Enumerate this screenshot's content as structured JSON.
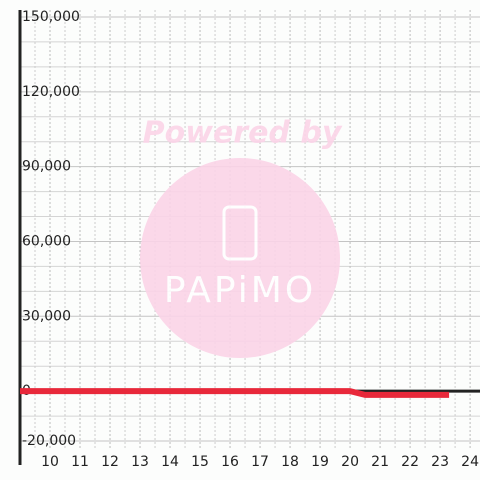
{
  "chart_data": {
    "type": "line",
    "watermark_text": "Powered by",
    "watermark_logo": "PAPiMO",
    "x": [
      9,
      10,
      11,
      12,
      13,
      14,
      15,
      16,
      17,
      18,
      19,
      20,
      20.5,
      21,
      22,
      23,
      23.3
    ],
    "series": [
      {
        "color": "#e8283a",
        "values": [
          0,
          0,
          0,
          0,
          0,
          0,
          0,
          0,
          0,
          0,
          0,
          0,
          -1500,
          -1500,
          -1500,
          -1500,
          -1500
        ]
      }
    ],
    "xlim": [
      9,
      24.33
    ],
    "ylim": [
      -23600,
      152800
    ],
    "xticks": [
      10,
      11,
      12,
      13,
      14,
      15,
      16,
      17,
      18,
      19,
      20,
      21,
      22,
      23,
      24
    ],
    "x_minor_ticks": [
      9.5,
      10.5,
      11.5,
      12.5,
      13.5,
      14.5,
      15.5,
      16.5,
      17.5,
      18.5,
      19.5,
      20.5,
      21.5,
      22.5,
      23.5
    ],
    "yticks": [
      {
        "value": -20000,
        "label": "-20,000"
      },
      0,
      {
        "value": 30000,
        "label": "30,000"
      },
      {
        "value": 60000,
        "label": "60,000"
      },
      {
        "value": 90000,
        "label": "90,000"
      },
      {
        "value": 120000,
        "label": "120,000"
      },
      {
        "value": 150000,
        "label": "150,000"
      }
    ],
    "y_minor_ticks": [
      -10000,
      10000,
      20000,
      40000,
      50000,
      70000,
      80000,
      100000,
      110000,
      130000,
      140000
    ],
    "grid": true
  }
}
